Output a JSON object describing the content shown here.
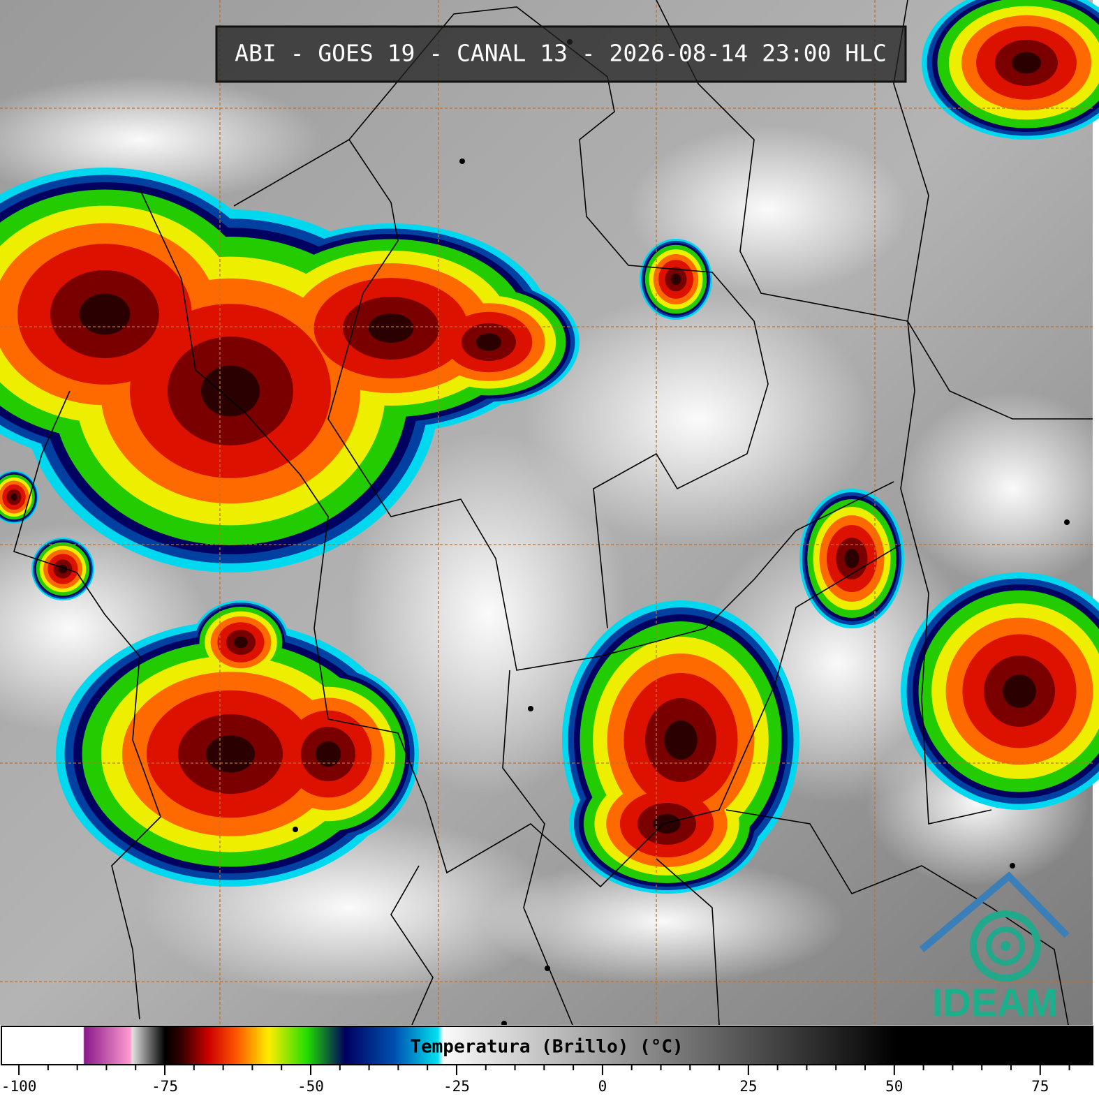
{
  "title": "ABI - GOES 19 - CANAL 13 - 2026-08-14 23:00 HLC",
  "logo": "IDEAM",
  "colorbar": {
    "label": "Temperatura (Brillo) (°C)",
    "xlim": [
      -103,
      84
    ],
    "ticks": [
      -100,
      -75,
      -50,
      -25,
      0,
      25,
      50,
      75
    ],
    "minor_ticks": [
      -95,
      -90,
      -85,
      -80,
      -70,
      -65,
      -60,
      -55,
      -45,
      -40,
      -35,
      -30,
      -20,
      -15,
      -10,
      -5,
      5,
      10,
      15,
      20,
      30,
      35,
      40,
      45,
      55,
      60,
      65,
      70,
      80
    ]
  }
}
